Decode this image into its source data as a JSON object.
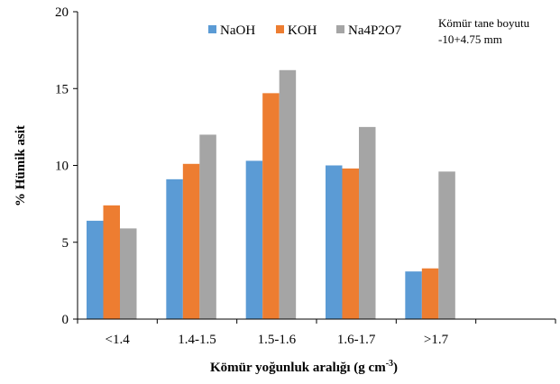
{
  "chart_data": {
    "type": "bar",
    "categories": [
      "<1.4",
      "1.4-1.5",
      "1.5-1.6",
      "1.6-1.7",
      ">1.7"
    ],
    "series": [
      {
        "name": "NaOH",
        "values": [
          6.4,
          9.1,
          10.3,
          10.0,
          3.1
        ],
        "color": "#5b9bd5"
      },
      {
        "name": "KOH",
        "values": [
          7.4,
          10.1,
          14.7,
          9.8,
          3.3
        ],
        "color": "#ed7d31"
      },
      {
        "name": "Na4P2O7",
        "values": [
          5.9,
          12.0,
          16.2,
          12.5,
          9.6
        ],
        "color": "#a5a5a5"
      }
    ],
    "xlabel": "Kömür yoğunluk aralığı (g cm",
    "xlabel_sup": "-3",
    "xlabel_tail": ")",
    "ylabel": "% Hümik asit",
    "ylim": [
      0,
      20
    ],
    "yticks": [
      0,
      5,
      10,
      15,
      20
    ],
    "grid": false,
    "legend_position": "top",
    "annotation": {
      "line1": "Kömür tane boyutu",
      "line2": "-10+4.75 mm"
    }
  }
}
